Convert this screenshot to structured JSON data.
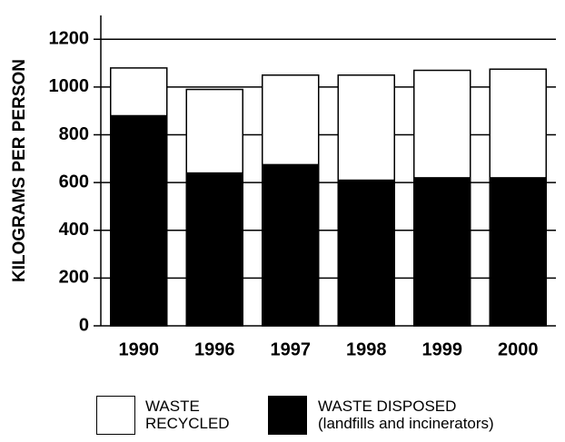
{
  "chart_data": {
    "type": "stacked_bar",
    "ylabel": "KILOGRAMS PER PERSON",
    "categories": [
      "1990",
      "1996",
      "1997",
      "1998",
      "1999",
      "2000"
    ],
    "series": [
      {
        "name": "WASTE DISPOSED (landfills and incinerators)",
        "color": "#000000",
        "values": [
          880,
          640,
          675,
          610,
          620,
          620
        ]
      },
      {
        "name": "WASTE RECYCLED",
        "color": "#ffffff",
        "values": [
          200,
          350,
          375,
          440,
          450,
          455
        ]
      }
    ],
    "ylim": [
      0,
      1300
    ],
    "yticks": [
      0,
      200,
      400,
      600,
      800,
      1000,
      1200
    ],
    "grid": true
  }
}
